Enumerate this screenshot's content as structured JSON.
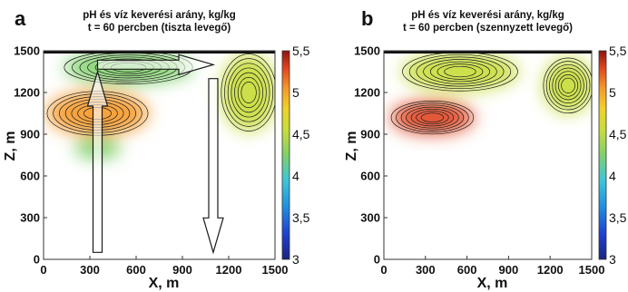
{
  "chart_data": [
    {
      "type": "heatmap",
      "panel": "a",
      "title_line1": "pH és víz keverési arány, kg/kg",
      "title_line2": "t = 60 percben (tiszta levegő)",
      "xlabel": "X, m",
      "ylabel": "Z, m",
      "xlim": [
        0,
        1500
      ],
      "ylim": [
        0,
        1500
      ],
      "xticks": [
        0,
        300,
        600,
        900,
        1200,
        1500
      ],
      "yticks": [
        0,
        300,
        600,
        900,
        1200,
        1500
      ],
      "colorbar": {
        "min": 3,
        "max": 5.5,
        "ticks": [
          "3",
          "3,5",
          "4",
          "4,5",
          "5",
          "5,5"
        ]
      },
      "cloud_blobs": [
        {
          "x": 350,
          "z": 1050,
          "rx": 330,
          "rz": 160,
          "value": 5.0
        },
        {
          "x": 550,
          "z": 1380,
          "rx": 420,
          "rz": 120,
          "value": 4.2
        },
        {
          "x": 1330,
          "z": 1200,
          "rx": 180,
          "rz": 280,
          "value": 4.3
        },
        {
          "x": 350,
          "z": 800,
          "rx": 150,
          "rz": 80,
          "value": 4.0
        }
      ],
      "arrows": [
        {
          "from": [
            350,
            50
          ],
          "to": [
            350,
            1350
          ],
          "kind": "updraft"
        },
        {
          "from": [
            1100,
            1300
          ],
          "to": [
            1100,
            50
          ],
          "kind": "downdraft"
        },
        {
          "from": [
            350,
            1400
          ],
          "to": [
            1100,
            1400
          ],
          "kind": "outflow"
        }
      ]
    },
    {
      "type": "heatmap",
      "panel": "b",
      "title_line1": "pH és víz keverési arány, kg/kg",
      "title_line2": "t = 60 percben (szennyzett levegő)",
      "xlabel": "X, m",
      "ylabel": "Z, m",
      "xlim": [
        0,
        1500
      ],
      "ylim": [
        0,
        1500
      ],
      "xticks": [
        0,
        300,
        600,
        900,
        1200,
        1500
      ],
      "yticks": [
        0,
        300,
        600,
        900,
        1200,
        1500
      ],
      "colorbar": {
        "min": 3,
        "max": 5.5,
        "ticks": [
          "3",
          "3,5",
          "4",
          "4,5",
          "5",
          "5,5"
        ]
      },
      "cloud_blobs": [
        {
          "x": 350,
          "z": 1020,
          "rx": 300,
          "rz": 120,
          "value": 5.1
        },
        {
          "x": 550,
          "z": 1350,
          "rx": 420,
          "rz": 140,
          "value": 4.3
        },
        {
          "x": 1330,
          "z": 1250,
          "rx": 180,
          "rz": 200,
          "value": 4.4
        }
      ],
      "arrows": []
    }
  ]
}
